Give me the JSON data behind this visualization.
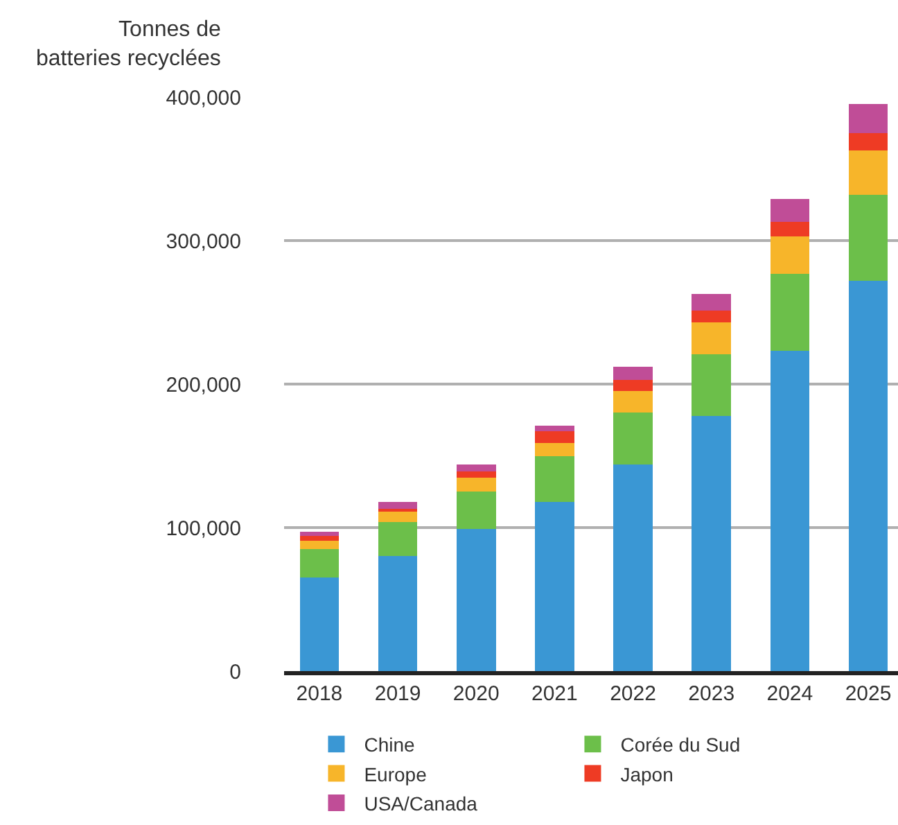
{
  "chart_data": {
    "type": "bar",
    "stacked": true,
    "ylabel": "Tonnes de\nbatteries recyclées",
    "categories": [
      "2018",
      "2019",
      "2020",
      "2021",
      "2022",
      "2023",
      "2024",
      "2025"
    ],
    "series": [
      {
        "name": "Chine",
        "color": "#3a97d4",
        "values": [
          65000,
          80000,
          99000,
          118000,
          144000,
          178000,
          223000,
          272000
        ]
      },
      {
        "name": "Corée du Sud",
        "color": "#6cbf4a",
        "values": [
          20000,
          24000,
          26000,
          32000,
          36000,
          43000,
          54000,
          60000
        ]
      },
      {
        "name": "Europe",
        "color": "#f7b52a",
        "values": [
          6000,
          7000,
          10000,
          9000,
          15000,
          22000,
          26000,
          31000
        ]
      },
      {
        "name": "Japon",
        "color": "#ee3b24",
        "values": [
          3000,
          2000,
          4000,
          8000,
          8000,
          8000,
          10000,
          12000
        ]
      },
      {
        "name": "USA/Canada",
        "color": "#c04d97",
        "values": [
          3000,
          5000,
          5000,
          4000,
          9000,
          12000,
          16000,
          20000
        ]
      }
    ],
    "ylim": [
      0,
      400000
    ],
    "yticks": [
      {
        "value": 0,
        "label": "0"
      },
      {
        "value": 100000,
        "label": "100,000"
      },
      {
        "value": 200000,
        "label": "200,000"
      },
      {
        "value": 300000,
        "label": "300,000"
      },
      {
        "value": 400000,
        "label": "400,000"
      }
    ],
    "grid": "y",
    "legend": "bottom"
  }
}
